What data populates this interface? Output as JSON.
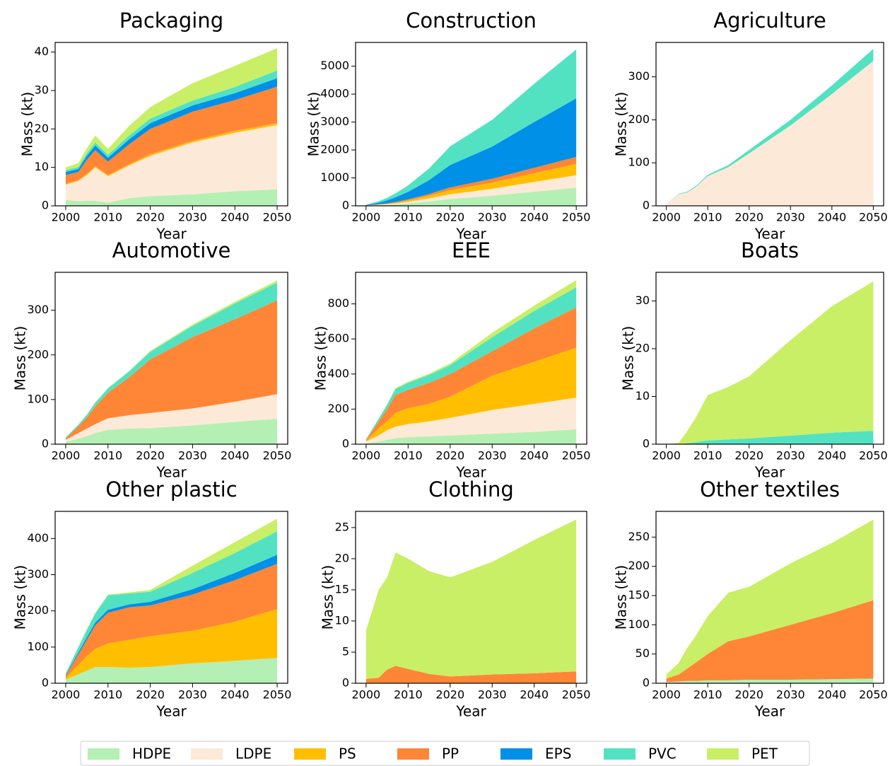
{
  "chart_data": [
    {
      "type": "area",
      "title": "Packaging",
      "x_label": "Year",
      "y_label": "Mass (kt)",
      "x": [
        2000,
        2003,
        2005,
        2007,
        2010,
        2015,
        2020,
        2030,
        2040,
        2050
      ],
      "xlim": [
        1997.5,
        2052.5
      ],
      "xticks": [
        2000,
        2010,
        2020,
        2030,
        2040,
        2050
      ],
      "ylim": [
        0,
        42.5
      ],
      "yticks": [
        0,
        10,
        20,
        30,
        40
      ],
      "series": [
        {
          "values": [
            1.5,
            1.2,
            1.3,
            1.3,
            0.8,
            2,
            2.5,
            3,
            3.8,
            4.3
          ]
        },
        {
          "values": [
            4,
            5.3,
            6.7,
            8.7,
            6.9,
            8.5,
            10.5,
            13.5,
            15.2,
            16.7
          ]
        },
        {
          "values": [
            0.2,
            0.2,
            0.3,
            0.3,
            0.3,
            0.3,
            0.4,
            0.4,
            0.5,
            0.5
          ]
        },
        {
          "values": [
            2.3,
            2.1,
            3.7,
            4.2,
            3.5,
            5.2,
            6.6,
            7.6,
            8,
            9.5
          ]
        },
        {
          "values": [
            0.8,
            0.8,
            1,
            1.2,
            1,
            1.3,
            1.5,
            1.6,
            1.8,
            2.2
          ]
        },
        {
          "values": [
            0.5,
            0.5,
            0.7,
            0.8,
            0.8,
            1,
            1.2,
            1.3,
            1.6,
            2
          ]
        },
        {
          "values": [
            0.7,
            1,
            1.3,
            1.8,
            1.5,
            2.5,
            3,
            4.5,
            5.5,
            5.8
          ]
        }
      ]
    },
    {
      "type": "area",
      "title": "Construction",
      "x_label": "Year",
      "y_label": "Mass (kt)",
      "x": [
        2000,
        2003,
        2005,
        2007,
        2010,
        2015,
        2020,
        2030,
        2040,
        2050
      ],
      "xlim": [
        1997.5,
        2052.5
      ],
      "xticks": [
        2000,
        2010,
        2020,
        2030,
        2040,
        2050
      ],
      "ylim": [
        0,
        5850
      ],
      "yticks": [
        0,
        1000,
        2000,
        3000,
        4000,
        5000
      ],
      "series": [
        {
          "values": [
            5,
            20,
            30,
            50,
            85,
            155,
            245,
            360,
            505,
            650
          ]
        },
        {
          "values": [
            5,
            15,
            25,
            35,
            60,
            110,
            170,
            250,
            350,
            450
          ]
        },
        {
          "values": [
            5,
            10,
            20,
            30,
            50,
            95,
            150,
            220,
            310,
            400
          ]
        },
        {
          "values": [
            5,
            10,
            15,
            20,
            35,
            60,
            95,
            140,
            195,
            250
          ]
        },
        {
          "values": [
            10,
            60,
            105,
            170,
            270,
            500,
            800,
            1150,
            1640,
            2100
          ]
        },
        {
          "values": [
            10,
            50,
            90,
            140,
            230,
            420,
            670,
            960,
            1370,
            1750
          ]
        },
        {
          "values": [
            0,
            0,
            0,
            0,
            0,
            0,
            0,
            0,
            0,
            0
          ]
        }
      ]
    },
    {
      "type": "area",
      "title": "Agriculture",
      "x_label": "Year",
      "y_label": "Mass (kt)",
      "x": [
        2000,
        2003,
        2005,
        2007,
        2010,
        2015,
        2020,
        2030,
        2040,
        2050
      ],
      "xlim": [
        1997.5,
        2052.5
      ],
      "xticks": [
        2000,
        2010,
        2020,
        2030,
        2040,
        2050
      ],
      "ylim": [
        0,
        380
      ],
      "yticks": [
        0,
        100,
        200,
        300
      ],
      "series": [
        {
          "values": [
            1,
            1,
            1,
            1,
            1,
            1,
            1,
            1,
            1,
            1
          ]
        },
        {
          "values": [
            4,
            26,
            30,
            42,
            68,
            89,
            121,
            186,
            259,
            336
          ]
        },
        {
          "values": [
            0,
            0,
            0,
            0,
            0,
            0,
            0,
            0,
            0,
            0
          ]
        },
        {
          "values": [
            0,
            0,
            0,
            0,
            0,
            0,
            0,
            0,
            0,
            0
          ]
        },
        {
          "values": [
            0,
            0,
            0,
            0,
            0,
            0,
            0,
            0,
            0,
            0
          ]
        },
        {
          "values": [
            0,
            1,
            2,
            2,
            3,
            5,
            8,
            13,
            20,
            28
          ]
        },
        {
          "values": [
            0,
            0,
            0,
            0,
            0,
            0,
            0,
            0,
            0,
            0
          ]
        }
      ]
    },
    {
      "type": "area",
      "title": "Automotive",
      "x_label": "Year",
      "y_label": "Mass (kt)",
      "x": [
        2000,
        2003,
        2005,
        2007,
        2010,
        2015,
        2020,
        2030,
        2040,
        2050
      ],
      "xlim": [
        1997.5,
        2052.5
      ],
      "xticks": [
        2000,
        2010,
        2020,
        2030,
        2040,
        2050
      ],
      "ylim": [
        0,
        385
      ],
      "yticks": [
        0,
        100,
        200,
        300
      ],
      "series": [
        {
          "values": [
            5,
            12,
            18,
            25,
            32,
            35,
            36,
            42,
            50,
            57
          ]
        },
        {
          "values": [
            5,
            13,
            17,
            20,
            26,
            30,
            34,
            38,
            45,
            55
          ]
        },
        {
          "values": [
            0,
            0,
            0,
            0,
            0,
            0,
            0,
            0,
            0,
            0
          ]
        },
        {
          "values": [
            3,
            15,
            25,
            40,
            57,
            85,
            120,
            160,
            185,
            210
          ]
        },
        {
          "values": [
            0,
            0,
            0,
            0,
            0,
            0,
            0,
            0,
            0,
            0
          ]
        },
        {
          "values": [
            2,
            4,
            6,
            8,
            10,
            13,
            17,
            25,
            35,
            40
          ]
        },
        {
          "values": [
            0,
            0,
            0,
            1,
            1,
            1,
            2,
            3,
            4,
            5
          ]
        }
      ]
    },
    {
      "type": "area",
      "title": "EEE",
      "x_label": "Year",
      "y_label": "Mass (kt)",
      "x": [
        2000,
        2003,
        2005,
        2007,
        2010,
        2015,
        2020,
        2030,
        2040,
        2050
      ],
      "xlim": [
        1997.5,
        2052.5
      ],
      "xticks": [
        2000,
        2010,
        2020,
        2030,
        2040,
        2050
      ],
      "ylim": [
        0,
        980
      ],
      "yticks": [
        0,
        200,
        400,
        600,
        800
      ],
      "series": [
        {
          "values": [
            5,
            15,
            25,
            35,
            40,
            45,
            50,
            60,
            70,
            85
          ]
        },
        {
          "values": [
            10,
            35,
            55,
            65,
            75,
            85,
            100,
            135,
            160,
            180
          ]
        },
        {
          "values": [
            5,
            40,
            50,
            80,
            90,
            100,
            120,
            195,
            240,
            285
          ]
        },
        {
          "values": [
            5,
            40,
            70,
            100,
            105,
            120,
            130,
            140,
            190,
            230
          ]
        },
        {
          "values": [
            0,
            0,
            0,
            0,
            0,
            0,
            0,
            0,
            0,
            0
          ]
        },
        {
          "values": [
            3,
            15,
            25,
            35,
            40,
            45,
            50,
            80,
            100,
            115
          ]
        },
        {
          "values": [
            0,
            2,
            3,
            5,
            6,
            8,
            10,
            25,
            30,
            40
          ]
        }
      ]
    },
    {
      "type": "area",
      "title": "Boats",
      "x_label": "Year",
      "y_label": "Mass (kt)",
      "x": [
        2000,
        2003,
        2005,
        2007,
        2010,
        2015,
        2020,
        2030,
        2040,
        2050
      ],
      "xlim": [
        1997.5,
        2052.5
      ],
      "xticks": [
        2000,
        2010,
        2020,
        2030,
        2040,
        2050
      ],
      "ylim": [
        0,
        36
      ],
      "yticks": [
        0,
        10,
        20,
        30
      ],
      "series": [
        {
          "values": [
            0,
            0,
            0,
            0,
            0,
            0,
            0,
            0,
            0,
            0
          ]
        },
        {
          "values": [
            0,
            0,
            0,
            0,
            0,
            0,
            0,
            0,
            0,
            0
          ]
        },
        {
          "values": [
            0,
            0,
            0,
            0,
            0,
            0,
            0,
            0,
            0,
            0
          ]
        },
        {
          "values": [
            0,
            0,
            0,
            0,
            0,
            0,
            0,
            0,
            0,
            0
          ]
        },
        {
          "values": [
            0,
            0,
            0,
            0,
            0,
            0,
            0,
            0,
            0,
            0
          ]
        },
        {
          "values": [
            0,
            0,
            0.2,
            0.4,
            0.8,
            1,
            1.2,
            1.8,
            2.4,
            2.8
          ]
        },
        {
          "values": [
            0,
            0.3,
            2.5,
            5,
            9.5,
            11,
            13,
            20,
            26.5,
            31.3
          ]
        }
      ]
    },
    {
      "type": "area",
      "title": "Other plastic",
      "x_label": "Year",
      "y_label": "Mass (kt)",
      "x": [
        2000,
        2003,
        2005,
        2007,
        2010,
        2015,
        2020,
        2030,
        2040,
        2050
      ],
      "xlim": [
        1997.5,
        2052.5
      ],
      "xticks": [
        2000,
        2010,
        2020,
        2030,
        2040,
        2050
      ],
      "ylim": [
        0,
        475
      ],
      "yticks": [
        0,
        100,
        200,
        300,
        400
      ],
      "series": [
        {
          "values": [
            10,
            25,
            35,
            45,
            45,
            43,
            45,
            55,
            62,
            70
          ]
        },
        {
          "values": [
            0,
            0,
            0,
            0,
            0,
            0,
            0,
            0,
            0,
            0
          ]
        },
        {
          "values": [
            5,
            25,
            40,
            50,
            65,
            77,
            85,
            90,
            108,
            135
          ]
        },
        {
          "values": [
            5,
            30,
            45,
            65,
            85,
            90,
            85,
            100,
            115,
            125
          ]
        },
        {
          "values": [
            2,
            5,
            7,
            8,
            8,
            8,
            10,
            15,
            20,
            25
          ]
        },
        {
          "values": [
            5,
            15,
            20,
            25,
            40,
            30,
            28,
            45,
            55,
            65
          ]
        },
        {
          "values": [
            0,
            1,
            2,
            2,
            2,
            3,
            5,
            20,
            30,
            35
          ]
        }
      ]
    },
    {
      "type": "area",
      "title": "Clothing",
      "x_label": "Year",
      "y_label": "Mass (kt)",
      "x": [
        2000,
        2003,
        2005,
        2007,
        2010,
        2015,
        2020,
        2030,
        2040,
        2050
      ],
      "xlim": [
        1997.5,
        2052.5
      ],
      "xticks": [
        2000,
        2010,
        2020,
        2030,
        2040,
        2050
      ],
      "ylim": [
        0,
        27.6
      ],
      "yticks": [
        0,
        5,
        10,
        15,
        20,
        25
      ],
      "series": [
        {
          "values": [
            0,
            0,
            0,
            0,
            0,
            0,
            0,
            0,
            0,
            0
          ]
        },
        {
          "values": [
            0,
            0,
            0,
            0,
            0,
            0,
            0,
            0,
            0,
            0
          ]
        },
        {
          "values": [
            0,
            0,
            0,
            0,
            0,
            0,
            0,
            0,
            0,
            0
          ]
        },
        {
          "values": [
            0.7,
            0.9,
            2.2,
            2.8,
            2.3,
            1.5,
            1.1,
            1.4,
            1.6,
            1.9
          ]
        },
        {
          "values": [
            0,
            0,
            0,
            0,
            0,
            0,
            0,
            0,
            0,
            0
          ]
        },
        {
          "values": [
            0,
            0,
            0,
            0,
            0,
            0,
            0,
            0,
            0,
            0
          ]
        },
        {
          "values": [
            7.8,
            14.1,
            14.8,
            18.2,
            17.7,
            16.5,
            15.9,
            18.1,
            21.4,
            24.4
          ]
        }
      ]
    },
    {
      "type": "area",
      "title": "Other textiles",
      "x_label": "Year",
      "y_label": "Mass (kt)",
      "x": [
        2000,
        2003,
        2005,
        2007,
        2010,
        2015,
        2020,
        2030,
        2040,
        2050
      ],
      "xlim": [
        1997.5,
        2052.5
      ],
      "xticks": [
        2000,
        2010,
        2020,
        2030,
        2040,
        2050
      ],
      "ylim": [
        0,
        294
      ],
      "yticks": [
        0,
        50,
        100,
        150,
        200,
        250
      ],
      "series": [
        {
          "values": [
            2,
            3,
            4,
            4,
            5,
            5,
            6,
            6,
            7,
            8
          ]
        },
        {
          "values": [
            0,
            0,
            0,
            0,
            0,
            0,
            0,
            0,
            0,
            0
          ]
        },
        {
          "values": [
            0,
            0,
            0,
            0,
            0,
            0,
            0,
            0,
            0,
            0
          ]
        },
        {
          "values": [
            6,
            12,
            21,
            31,
            45,
            67,
            74,
            94,
            113,
            134
          ]
        },
        {
          "values": [
            0,
            0,
            0,
            0,
            0,
            0,
            0,
            0,
            0,
            0
          ]
        },
        {
          "values": [
            0,
            0,
            0,
            0,
            0,
            0,
            0,
            0,
            0,
            0
          ]
        },
        {
          "values": [
            7,
            20,
            35,
            45,
            65,
            83,
            85,
            105,
            120,
            138
          ]
        }
      ]
    }
  ],
  "legend": [
    {
      "name": "HDPE",
      "color": "#b4f0b4"
    },
    {
      "name": "LDPE",
      "color": "#fde9d7"
    },
    {
      "name": "PS",
      "color": "#ffbf00"
    },
    {
      "name": "PP",
      "color": "#ff8636"
    },
    {
      "name": "EPS",
      "color": "#0090e8"
    },
    {
      "name": "PVC",
      "color": "#52e2c2"
    },
    {
      "name": "PET",
      "color": "#c9ef66"
    }
  ]
}
